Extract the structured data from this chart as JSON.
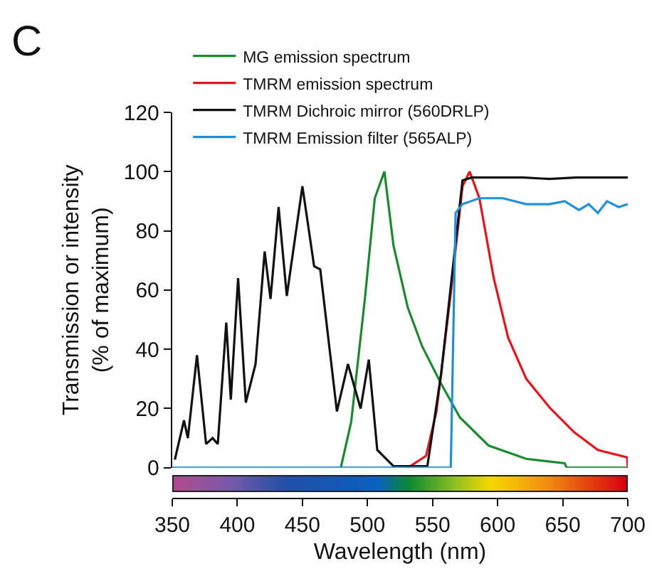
{
  "chart_data": {
    "type": "line",
    "annotations": [
      "C"
    ],
    "xlabel": "Wavelength (nm)",
    "ylabel": "Transmission or intensity\n(% of maximum)",
    "xlim": [
      350,
      700
    ],
    "xticks": [
      350,
      400,
      450,
      500,
      550,
      600,
      650,
      700
    ],
    "ylim": [
      0,
      120
    ],
    "yticks": [
      0,
      20,
      40,
      60,
      80,
      100,
      120
    ],
    "grid": false,
    "legend": "top left",
    "marker": "none",
    "line_style": "solid",
    "series": [
      {
        "name": "MG emission spectrum",
        "color": "#1a8a2e",
        "x": [
          479.5,
          487.5,
          498,
          505.6,
          513,
          520,
          531,
          542,
          557,
          571,
          593,
          622,
          651.5,
          653,
          700
        ],
        "values": [
          0,
          15.5,
          57,
          91,
          100,
          75,
          54,
          41,
          28,
          17,
          7.5,
          3,
          1.5,
          0,
          0
        ]
      },
      {
        "name": "TMRM emission spectrum",
        "color": "#e8141c",
        "x": [
          531,
          545,
          553,
          564,
          573,
          578.5,
          586,
          597,
          608,
          622,
          640.6,
          658.8,
          677,
          699.5,
          700
        ],
        "values": [
          0,
          4,
          19,
          59,
          95,
          100,
          91,
          64,
          44,
          30,
          20,
          12,
          6,
          3.5,
          0
        ]
      },
      {
        "name": "TMRM Dichroic mirror (560DRLP)",
        "color": "#111111",
        "x": [
          352,
          359,
          362,
          369,
          376,
          381,
          385,
          391.5,
          395,
          400.6,
          406.5,
          414,
          421,
          425.5,
          431.7,
          438,
          450,
          459,
          463.7,
          476.5,
          485,
          494.7,
          501,
          507.5,
          520,
          546,
          556.7,
          567.7,
          573,
          580,
          600,
          620,
          640,
          660,
          680,
          700
        ],
        "values": [
          2.7,
          16,
          10,
          38,
          8,
          10,
          8,
          49,
          23,
          64,
          22,
          35,
          73,
          57,
          88,
          58,
          95,
          68,
          67,
          19,
          35,
          20,
          36.5,
          6,
          0.5,
          0.5,
          32,
          76,
          97,
          98,
          98,
          98,
          97.5,
          98,
          98,
          98
        ]
      },
      {
        "name": "TMRM Emission filter (565ALP)",
        "color": "#1e90e0",
        "x": [
          350,
          564,
          567.7,
          573,
          586,
          604,
          622,
          640,
          651.5,
          662.5,
          670,
          677,
          684,
          693,
          700
        ],
        "values": [
          0,
          0,
          86,
          89,
          91,
          91,
          89,
          89,
          90,
          87,
          89,
          86,
          90,
          88,
          89
        ]
      }
    ]
  }
}
